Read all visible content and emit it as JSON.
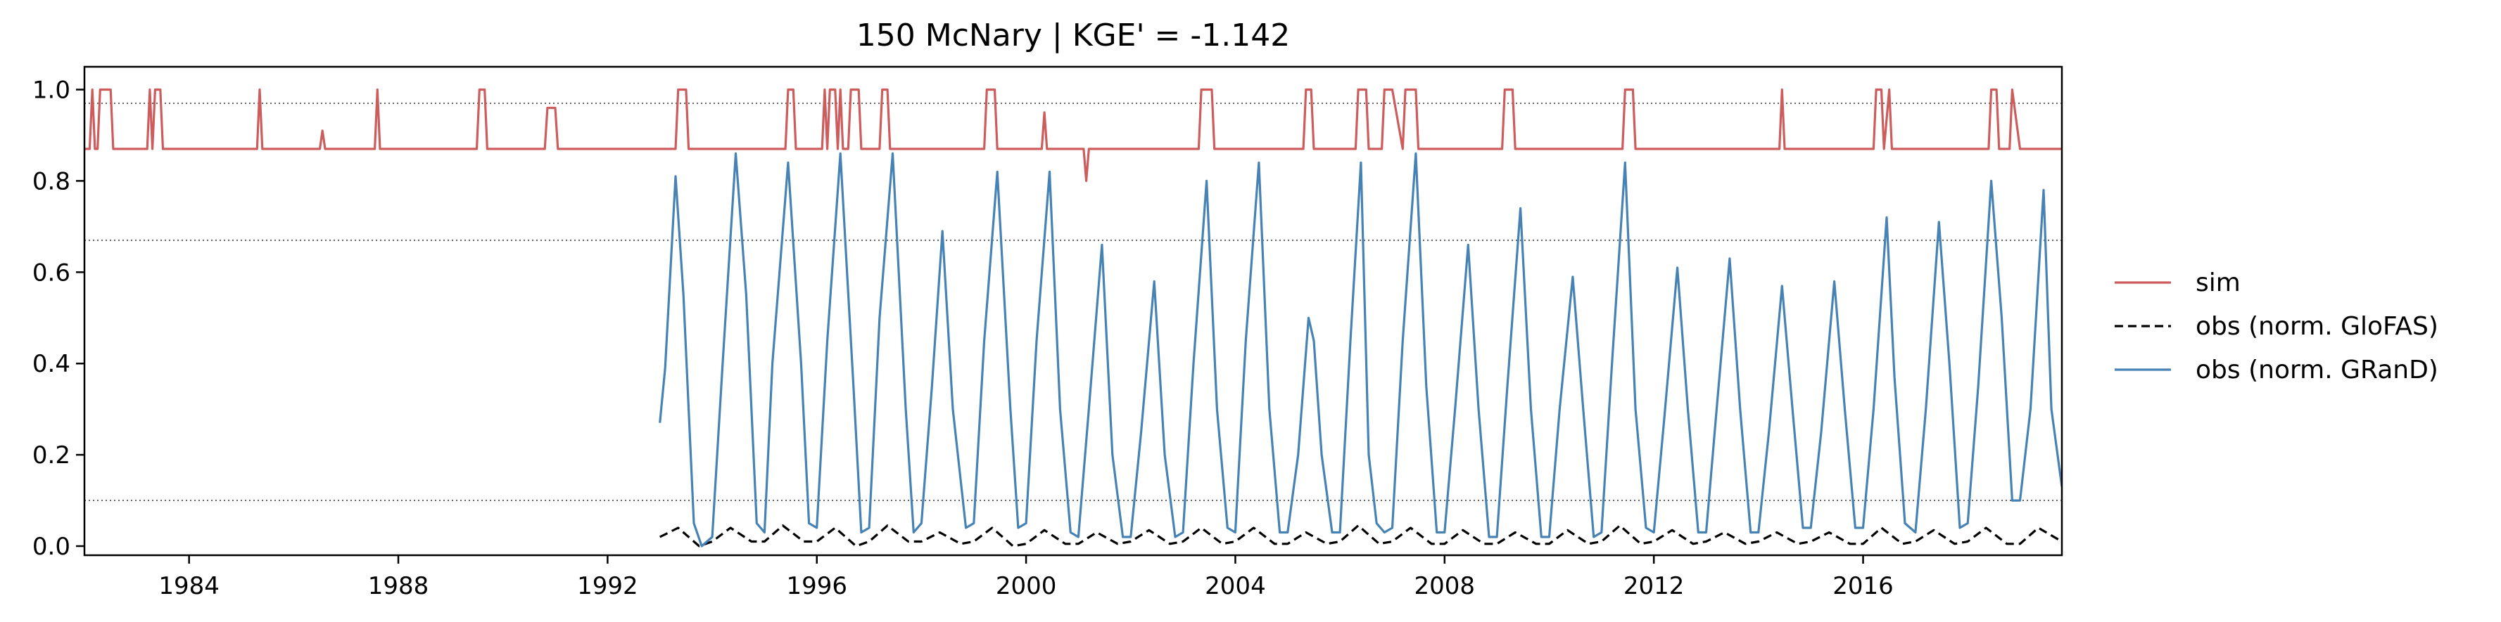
{
  "chart_data": {
    "type": "line",
    "title": "150  McNary | KGE' = -1.142",
    "xlabel": "",
    "ylabel": "",
    "xlim": [
      1982.0,
      2019.8
    ],
    "ylim": [
      -0.02,
      1.05
    ],
    "x_ticks": [
      1984,
      1988,
      1992,
      1996,
      2000,
      2004,
      2008,
      2012,
      2016
    ],
    "x_tick_labels": [
      "1984",
      "1988",
      "1992",
      "1996",
      "2000",
      "2004",
      "2008",
      "2012",
      "2016"
    ],
    "y_ticks": [
      0.0,
      0.2,
      0.4,
      0.6,
      0.8,
      1.0
    ],
    "y_tick_labels": [
      "0.0",
      "0.2",
      "0.4",
      "0.6",
      "0.8",
      "1.0"
    ],
    "grid": false,
    "legend_position": "right",
    "reference_lines": [
      0.97,
      0.67,
      0.1
    ],
    "colors": {
      "sim": "#d62728",
      "glofas": "#000000",
      "grand": "#1f77b4"
    },
    "series": [
      {
        "name": "sim",
        "style": "solid",
        "color": "#cd5c5c",
        "x": [
          1982.0,
          1982.1,
          1982.15,
          1982.2,
          1982.25,
          1982.3,
          1982.5,
          1982.55,
          1982.8,
          1982.85,
          1983.2,
          1983.25,
          1983.3,
          1983.35,
          1983.45,
          1983.5,
          1983.75,
          1983.8,
          1984.5,
          1985.0,
          1985.3,
          1985.35,
          1985.4,
          1985.45,
          1986.0,
          1986.5,
          1986.55,
          1986.6,
          1987.0,
          1987.55,
          1987.6,
          1987.65,
          1987.7,
          1988.5,
          1989.0,
          1989.5,
          1989.55,
          1989.65,
          1989.7,
          1990.0,
          1990.8,
          1990.85,
          1991.0,
          1991.05,
          1992.0,
          1993.0,
          1993.3,
          1993.35,
          1993.5,
          1993.55,
          1994.0,
          1995.0,
          1995.4,
          1995.45,
          1995.55,
          1995.6,
          1996.1,
          1996.15,
          1996.2,
          1996.25,
          1996.35,
          1996.4,
          1996.45,
          1996.5,
          1996.6,
          1996.65,
          1996.8,
          1996.85,
          1997.2,
          1997.25,
          1997.35,
          1997.4,
          1997.6,
          1997.65,
          1998.0,
          1999.2,
          1999.25,
          1999.4,
          1999.45,
          2000.0,
          2000.3,
          2000.35,
          2000.4,
          2000.9,
          2001.0,
          2001.1,
          2001.15,
          2001.2,
          2001.3,
          2002.0,
          2003.0,
          2003.3,
          2003.35,
          2003.55,
          2003.6,
          2004.0,
          2004.8,
          2005.0,
          2005.3,
          2005.35,
          2005.45,
          2005.5,
          2006.0,
          2006.3,
          2006.35,
          2006.5,
          2006.55,
          2006.8,
          2006.85,
          2007.0,
          2007.2,
          2007.25,
          2007.45,
          2007.5,
          2008.0,
          2009.1,
          2009.15,
          2009.3,
          2009.35,
          2010.0,
          2011.0,
          2011.4,
          2011.45,
          2011.6,
          2011.65,
          2012.0,
          2013.0,
          2014.0,
          2014.4,
          2014.45,
          2014.5,
          2015.0,
          2016.2,
          2016.25,
          2016.35,
          2016.4,
          2016.5,
          2016.55,
          2017.0,
          2018.0,
          2018.4,
          2018.45,
          2018.55,
          2018.6,
          2018.8,
          2018.85,
          2019.0,
          2019.8
        ],
        "y": [
          0.87,
          0.87,
          1.0,
          0.87,
          0.87,
          1.0,
          1.0,
          0.87,
          0.87,
          0.87,
          0.87,
          1.0,
          0.87,
          1.0,
          1.0,
          0.87,
          0.87,
          0.87,
          0.87,
          0.87,
          0.87,
          1.0,
          0.87,
          0.87,
          0.87,
          0.87,
          0.91,
          0.87,
          0.87,
          0.87,
          1.0,
          0.87,
          0.87,
          0.87,
          0.87,
          0.87,
          1.0,
          1.0,
          0.87,
          0.87,
          0.87,
          0.96,
          0.96,
          0.87,
          0.87,
          0.87,
          0.87,
          1.0,
          1.0,
          0.87,
          0.87,
          0.87,
          0.87,
          1.0,
          1.0,
          0.87,
          0.87,
          1.0,
          0.87,
          1.0,
          1.0,
          0.87,
          1.0,
          0.87,
          0.87,
          1.0,
          1.0,
          0.87,
          0.87,
          1.0,
          1.0,
          0.87,
          0.87,
          0.87,
          0.87,
          0.87,
          1.0,
          1.0,
          0.87,
          0.87,
          0.87,
          0.95,
          0.87,
          0.87,
          0.87,
          0.87,
          0.8,
          0.87,
          0.87,
          0.87,
          0.87,
          0.87,
          1.0,
          1.0,
          0.87,
          0.87,
          0.87,
          0.87,
          0.87,
          1.0,
          1.0,
          0.87,
          0.87,
          0.87,
          1.0,
          1.0,
          0.87,
          0.87,
          1.0,
          1.0,
          0.87,
          1.0,
          1.0,
          0.87,
          0.87,
          0.87,
          1.0,
          1.0,
          0.87,
          0.87,
          0.87,
          0.87,
          1.0,
          1.0,
          0.87,
          0.87,
          0.87,
          0.87,
          0.87,
          1.0,
          0.87,
          0.87,
          0.87,
          1.0,
          1.0,
          0.87,
          1.0,
          0.87,
          0.87,
          0.87,
          0.87,
          1.0,
          1.0,
          0.87,
          0.87,
          1.0,
          0.87,
          0.87
        ]
      },
      {
        "name": "obs (norm. GloFAS)",
        "style": "dashed",
        "color": "#000000",
        "x": [
          1993.0,
          1993.35,
          1993.75,
          1994.0,
          1994.35,
          1994.75,
          1995.0,
          1995.35,
          1995.75,
          1996.0,
          1996.35,
          1996.75,
          1997.0,
          1997.35,
          1997.75,
          1998.0,
          1998.35,
          1998.75,
          1999.0,
          1999.35,
          1999.75,
          2000.0,
          2000.35,
          2000.75,
          2001.0,
          2001.35,
          2001.75,
          2002.0,
          2002.35,
          2002.75,
          2003.0,
          2003.35,
          2003.75,
          2004.0,
          2004.35,
          2004.75,
          2005.0,
          2005.35,
          2005.75,
          2006.0,
          2006.35,
          2006.75,
          2007.0,
          2007.35,
          2007.75,
          2008.0,
          2008.35,
          2008.75,
          2009.0,
          2009.35,
          2009.75,
          2010.0,
          2010.35,
          2010.75,
          2011.0,
          2011.35,
          2011.75,
          2012.0,
          2012.35,
          2012.75,
          2013.0,
          2013.35,
          2013.75,
          2014.0,
          2014.35,
          2014.75,
          2015.0,
          2015.35,
          2015.75,
          2016.0,
          2016.35,
          2016.75,
          2017.0,
          2017.35,
          2017.75,
          2018.0,
          2018.35,
          2018.75,
          2019.0,
          2019.35,
          2019.8
        ],
        "y": [
          0.02,
          0.04,
          0.0,
          0.01,
          0.04,
          0.01,
          0.01,
          0.045,
          0.01,
          0.01,
          0.04,
          0.0,
          0.01,
          0.045,
          0.01,
          0.01,
          0.03,
          0.005,
          0.01,
          0.04,
          0.0,
          0.005,
          0.035,
          0.005,
          0.005,
          0.03,
          0.005,
          0.01,
          0.035,
          0.005,
          0.01,
          0.04,
          0.005,
          0.01,
          0.04,
          0.005,
          0.005,
          0.03,
          0.005,
          0.01,
          0.045,
          0.005,
          0.01,
          0.04,
          0.005,
          0.005,
          0.035,
          0.005,
          0.005,
          0.03,
          0.005,
          0.005,
          0.035,
          0.005,
          0.01,
          0.045,
          0.005,
          0.01,
          0.035,
          0.005,
          0.01,
          0.03,
          0.005,
          0.01,
          0.03,
          0.005,
          0.01,
          0.03,
          0.005,
          0.005,
          0.04,
          0.005,
          0.01,
          0.035,
          0.005,
          0.01,
          0.04,
          0.005,
          0.005,
          0.04,
          0.01
        ]
      },
      {
        "name": "obs (norm. GRanD)",
        "style": "solid",
        "color": "#4682b4",
        "x": [
          1993.0,
          1993.1,
          1993.3,
          1993.45,
          1993.65,
          1993.8,
          1994.0,
          1994.2,
          1994.45,
          1994.65,
          1994.85,
          1995.0,
          1995.15,
          1995.45,
          1995.7,
          1995.85,
          1996.0,
          1996.2,
          1996.45,
          1996.7,
          1996.85,
          1997.0,
          1997.2,
          1997.45,
          1997.7,
          1997.85,
          1998.0,
          1998.2,
          1998.4,
          1998.6,
          1998.85,
          1999.0,
          1999.2,
          1999.45,
          1999.7,
          1999.85,
          2000.0,
          2000.2,
          2000.45,
          2000.65,
          2000.85,
          2001.0,
          2001.2,
          2001.45,
          2001.65,
          2001.85,
          2002.0,
          2002.2,
          2002.45,
          2002.65,
          2002.85,
          2003.0,
          2003.2,
          2003.45,
          2003.65,
          2003.85,
          2004.0,
          2004.2,
          2004.45,
          2004.65,
          2004.85,
          2005.0,
          2005.2,
          2005.4,
          2005.5,
          2005.65,
          2005.85,
          2006.0,
          2006.2,
          2006.4,
          2006.55,
          2006.7,
          2006.85,
          2007.0,
          2007.2,
          2007.45,
          2007.65,
          2007.85,
          2008.0,
          2008.2,
          2008.45,
          2008.65,
          2008.85,
          2009.0,
          2009.2,
          2009.45,
          2009.65,
          2009.85,
          2010.0,
          2010.2,
          2010.45,
          2010.65,
          2010.85,
          2011.0,
          2011.2,
          2011.45,
          2011.65,
          2011.85,
          2012.0,
          2012.2,
          2012.45,
          2012.65,
          2012.85,
          2013.0,
          2013.2,
          2013.45,
          2013.65,
          2013.85,
          2014.0,
          2014.2,
          2014.45,
          2014.65,
          2014.85,
          2015.0,
          2015.2,
          2015.45,
          2015.65,
          2015.85,
          2016.0,
          2016.2,
          2016.45,
          2016.6,
          2016.8,
          2017.0,
          2017.2,
          2017.45,
          2017.65,
          2017.85,
          2018.0,
          2018.2,
          2018.45,
          2018.65,
          2018.85,
          2019.0,
          2019.2,
          2019.45,
          2019.6,
          2019.8
        ],
        "y": [
          0.27,
          0.39,
          0.81,
          0.55,
          0.05,
          0.0,
          0.02,
          0.4,
          0.86,
          0.55,
          0.05,
          0.03,
          0.4,
          0.84,
          0.4,
          0.05,
          0.04,
          0.45,
          0.86,
          0.35,
          0.03,
          0.04,
          0.5,
          0.86,
          0.3,
          0.03,
          0.05,
          0.35,
          0.69,
          0.3,
          0.04,
          0.05,
          0.45,
          0.82,
          0.3,
          0.04,
          0.05,
          0.45,
          0.82,
          0.3,
          0.03,
          0.02,
          0.3,
          0.66,
          0.2,
          0.02,
          0.02,
          0.25,
          0.58,
          0.2,
          0.02,
          0.03,
          0.4,
          0.8,
          0.3,
          0.04,
          0.03,
          0.45,
          0.84,
          0.3,
          0.03,
          0.03,
          0.2,
          0.5,
          0.45,
          0.2,
          0.03,
          0.03,
          0.45,
          0.84,
          0.2,
          0.05,
          0.03,
          0.04,
          0.45,
          0.86,
          0.35,
          0.03,
          0.03,
          0.3,
          0.66,
          0.3,
          0.02,
          0.02,
          0.35,
          0.74,
          0.3,
          0.02,
          0.02,
          0.3,
          0.59,
          0.3,
          0.02,
          0.03,
          0.4,
          0.84,
          0.3,
          0.04,
          0.03,
          0.28,
          0.61,
          0.3,
          0.03,
          0.03,
          0.3,
          0.63,
          0.3,
          0.03,
          0.03,
          0.25,
          0.57,
          0.3,
          0.04,
          0.04,
          0.25,
          0.58,
          0.3,
          0.04,
          0.04,
          0.3,
          0.72,
          0.37,
          0.05,
          0.03,
          0.3,
          0.71,
          0.4,
          0.04,
          0.05,
          0.35,
          0.8,
          0.5,
          0.1,
          0.1,
          0.3,
          0.78,
          0.3,
          0.13
        ]
      }
    ]
  }
}
